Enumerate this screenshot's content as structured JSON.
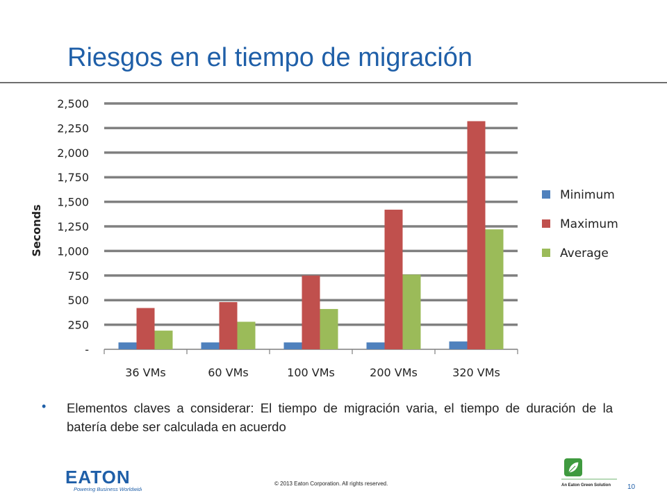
{
  "slide": {
    "title": "Riesgos en el tiempo de migración",
    "bullet_text": "Elementos claves a considerar: El tiempo de migración varia, el tiempo de duración de la batería debe ser calculada en acuerdo",
    "copyright": "© 2013 Eaton Corporation. All rights reserved.",
    "page_number": "10",
    "accent_color": "#1f5fa8"
  },
  "footer": {
    "eaton_logo_text": "EATON",
    "eaton_tagline": "Powering Business Worldwide",
    "green_logo_text": "An Eaton Green Solution"
  },
  "chart_data": {
    "type": "bar",
    "categories": [
      "36 VMs",
      "60 VMs",
      "100 VMs",
      "200 VMs",
      "320 VMs"
    ],
    "series": [
      {
        "name": "Minimum",
        "color": "#4f81bd",
        "values": [
          70,
          70,
          70,
          70,
          80
        ]
      },
      {
        "name": "Maximum",
        "color": "#c0504d",
        "values": [
          420,
          480,
          750,
          1420,
          2320
        ]
      },
      {
        "name": "Average",
        "color": "#9bbb59",
        "values": [
          190,
          280,
          410,
          760,
          1220
        ]
      }
    ],
    "ylabel": "Seconds",
    "xlabel": "",
    "ylim": [
      0,
      2500
    ],
    "yticks": [
      0,
      250,
      500,
      750,
      1000,
      1250,
      1500,
      1750,
      2000,
      2250,
      2500
    ],
    "ytick_labels": [
      "-",
      "250",
      "500",
      "750",
      "1,000",
      "1,250",
      "1,500",
      "1,750",
      "2,000",
      "2,250",
      "2,500"
    ],
    "grid": true,
    "legend_position": "right"
  }
}
